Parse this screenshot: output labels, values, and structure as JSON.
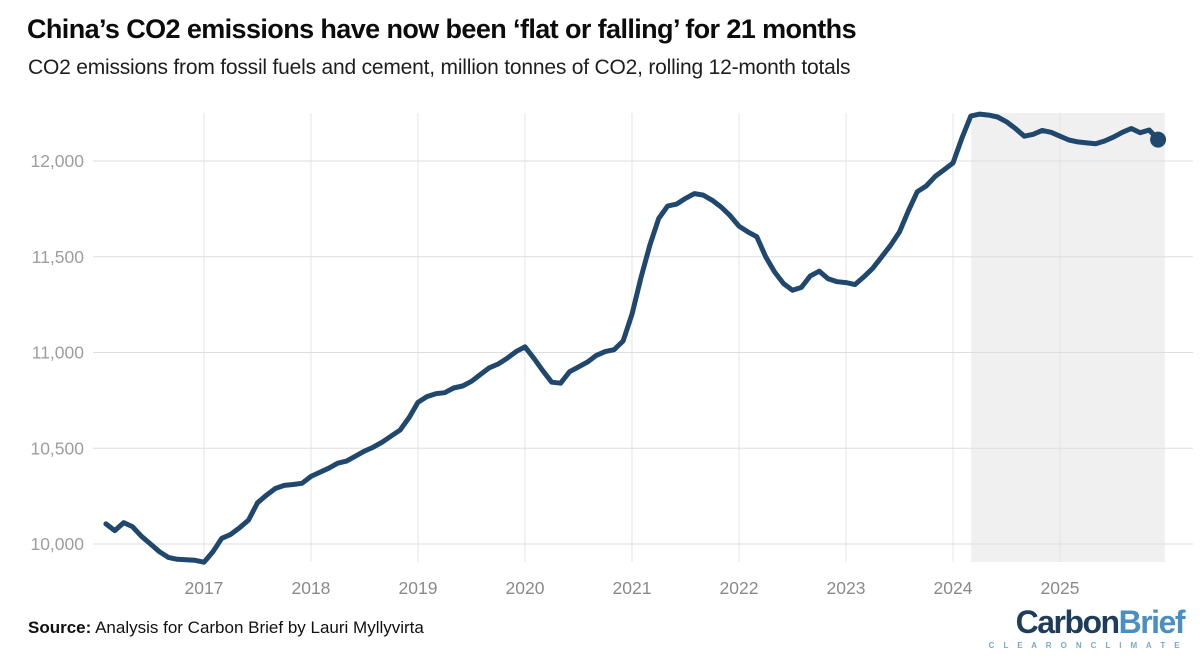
{
  "header": {
    "title": "China’s CO2 emissions have now been ‘flat or falling’ for 21 months",
    "subtitle": "CO2 emissions from fossil fuels and cement, million tonnes of CO2, rolling 12-month totals"
  },
  "footer": {
    "source_label": "Source:",
    "source_text": " Analysis for Carbon Brief by Lauri Myllyvirta",
    "logo": {
      "part1": "Carbon",
      "part2": "Brief",
      "tagline": "C L E A R   O N   C L I M A T E"
    }
  },
  "colors": {
    "line": "#20486e",
    "end_dot": "#20486e",
    "highlight": "#f0f0f0",
    "grid_h": "#dedede",
    "grid_v": "#e4e4e4",
    "axis_text_y": "#9e9e9e",
    "axis_text_x": "#8a8a8a",
    "logo_dark": "#1d3d5a",
    "logo_light": "#4a8ec2",
    "logo_tagline": "#7aa9cf"
  },
  "chart_data": {
    "type": "line",
    "title": "China’s CO2 emissions have now been ‘flat or falling’ for 21 months",
    "subtitle": "CO2 emissions from fossil fuels and cement, million tonnes of CO2, rolling 12-month totals",
    "unit": "million tonnes of CO2, rolling 12-month totals",
    "frequency": "monthly",
    "x_start": "2016-02",
    "x_end": "2025-12",
    "values": [
      10105,
      10070,
      10112,
      10090,
      10040,
      10000,
      9960,
      9930,
      9920,
      9918,
      9915,
      9905,
      9960,
      10030,
      10050,
      10085,
      10125,
      10215,
      10255,
      10290,
      10306,
      10311,
      10317,
      10353,
      10375,
      10396,
      10422,
      10433,
      10459,
      10485,
      10506,
      10532,
      10564,
      10595,
      10660,
      10740,
      10770,
      10785,
      10790,
      10815,
      10825,
      10850,
      10885,
      10920,
      10940,
      10970,
      11005,
      11030,
      10970,
      10905,
      10845,
      10840,
      10900,
      10925,
      10950,
      10985,
      11005,
      11015,
      11060,
      11200,
      11390,
      11560,
      11700,
      11765,
      11775,
      11805,
      11830,
      11822,
      11795,
      11760,
      11715,
      11660,
      11630,
      11605,
      11500,
      11420,
      11360,
      11325,
      11340,
      11400,
      11425,
      11385,
      11370,
      11365,
      11355,
      11395,
      11440,
      11500,
      11560,
      11630,
      11740,
      11840,
      11870,
      11920,
      11955,
      11990,
      12120,
      12235,
      12245,
      12240,
      12230,
      12205,
      12170,
      12130,
      12140,
      12160,
      12150,
      12130,
      12110,
      12100,
      12095,
      12090,
      12105,
      12125,
      12150,
      12170,
      12148,
      12162,
      12112
    ],
    "yticks": [
      10000,
      10500,
      11000,
      11500,
      12000
    ],
    "ytick_labels": [
      "10,000",
      "10,500",
      "11,000",
      "11,500",
      "12,000"
    ],
    "xticks": [
      2017,
      2018,
      2019,
      2020,
      2021,
      2022,
      2023,
      2024,
      2025
    ],
    "ylim": [
      9906,
      12251
    ],
    "xlim": [
      2015.963,
      2026.243
    ],
    "grid": true,
    "legend": false,
    "highlight_region": {
      "x_start": 2024.17,
      "x_end": 2025.98
    },
    "end_marker": "dot"
  }
}
